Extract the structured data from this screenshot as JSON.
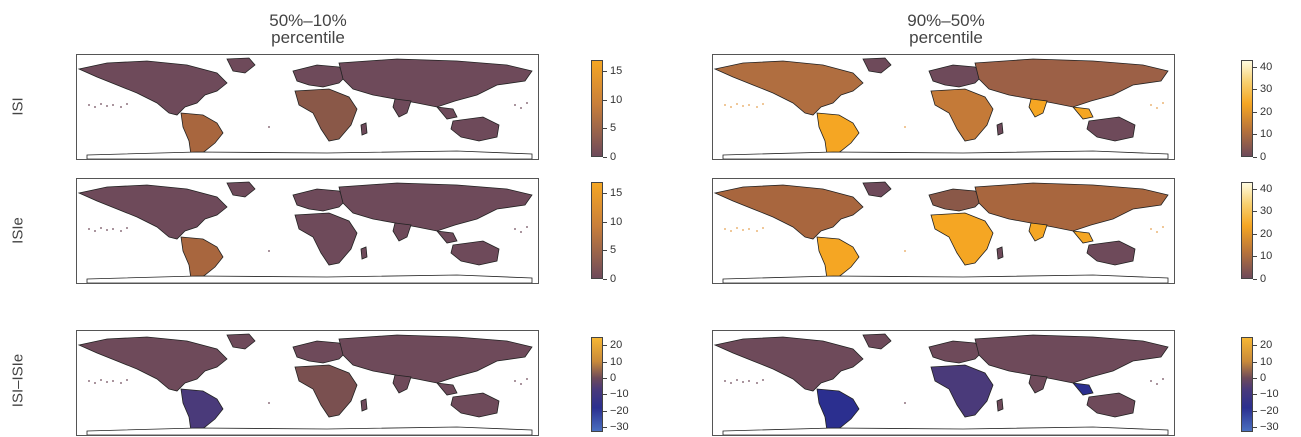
{
  "columns": [
    {
      "title_line1": "50%–10%",
      "title_line2": "percentile"
    },
    {
      "title_line1": "90%–50%",
      "title_line2": "percentile"
    }
  ],
  "rows": [
    {
      "label": "ISI"
    },
    {
      "label": "ISIe"
    },
    {
      "label": "ISI–ISIe"
    }
  ],
  "colorbars": {
    "r0c0": {
      "ticks": [
        "15",
        "10",
        "5",
        "0"
      ],
      "max": 17,
      "min": 0
    },
    "r0c1": {
      "ticks": [
        "40",
        "30",
        "20",
        "10",
        "0"
      ],
      "max": 43,
      "min": 0
    },
    "r1c0": {
      "ticks": [
        "15",
        "10",
        "5",
        "0"
      ],
      "max": 17,
      "min": 0
    },
    "r1c1": {
      "ticks": [
        "40",
        "30",
        "20",
        "10",
        "0"
      ],
      "max": 43,
      "min": 0
    },
    "r2c0": {
      "ticks": [
        "20",
        "10",
        "0",
        "−10",
        "−20",
        "−30"
      ],
      "max": 25,
      "min": -33
    },
    "r2c1": {
      "ticks": [
        "20",
        "10",
        "0",
        "−10",
        "−20",
        "−30"
      ],
      "max": 25,
      "min": -33
    }
  },
  "colors": {
    "land_base": "#6e4a5a",
    "high": "#f5a623",
    "peak": "#fffbe0",
    "negative": "#2b2f8f",
    "border": "#222222"
  }
}
